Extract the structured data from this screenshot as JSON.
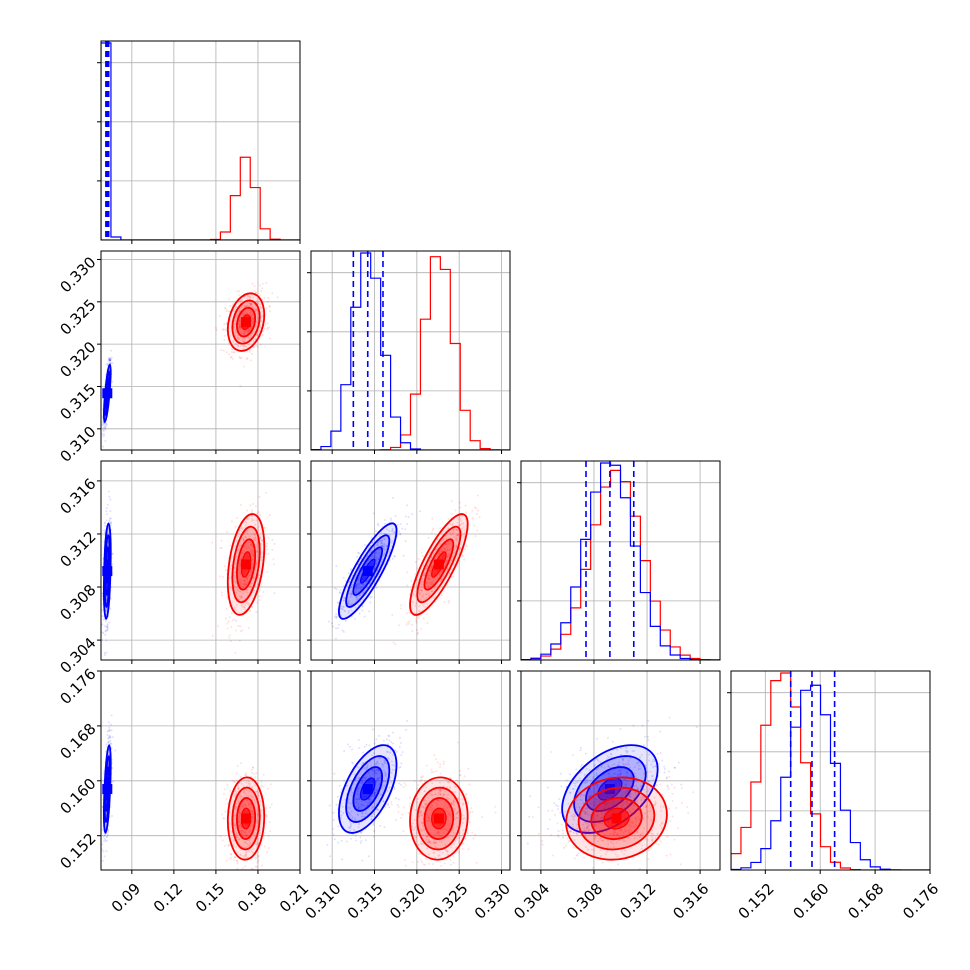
{
  "chart_data": {
    "type": "corner",
    "grid": true,
    "series_colors": [
      "#0000ff",
      "#ff0000"
    ],
    "parameters": [
      {
        "ticks": [
          0.09,
          0.12,
          0.15,
          0.18,
          0.21
        ],
        "tick_labels": [
          "0.09",
          "0.12",
          "0.15",
          "0.18",
          "0.21"
        ],
        "range": [
          0.068,
          0.21
        ],
        "blue_mean": 0.0725,
        "blue_std": 0.0012,
        "red_mean": 0.1715,
        "red_std": 0.0065,
        "blue_quantiles": [
          0.0715,
          0.0725,
          0.0735
        ]
      },
      {
        "ticks": [
          0.31,
          0.315,
          0.32,
          0.325,
          0.33
        ],
        "tick_labels": [
          "0.310",
          "0.315",
          "0.320",
          "0.325",
          "0.330"
        ],
        "range": [
          0.3075,
          0.331
        ],
        "blue_mean": 0.3142,
        "blue_std": 0.0017,
        "red_mean": 0.3226,
        "red_std": 0.0017,
        "blue_quantiles": [
          0.3125,
          0.3142,
          0.316
        ]
      },
      {
        "ticks": [
          0.304,
          0.308,
          0.312,
          0.316
        ],
        "tick_labels": [
          "0.304",
          "0.308",
          "0.312",
          "0.316"
        ],
        "range": [
          0.3025,
          0.3175
        ],
        "blue_mean": 0.3092,
        "blue_std": 0.0018,
        "red_mean": 0.3097,
        "red_std": 0.0019,
        "blue_quantiles": [
          0.3074,
          0.3092,
          0.311
        ]
      },
      {
        "ticks": [
          0.152,
          0.16,
          0.168,
          0.176
        ],
        "tick_labels": [
          "0.152",
          "0.160",
          "0.168",
          "0.176"
        ],
        "range": [
          0.147,
          0.176
        ],
        "blue_mean": 0.1588,
        "blue_std": 0.0032,
        "red_mean": 0.1545,
        "red_std": 0.003,
        "blue_quantiles": [
          0.1557,
          0.1588,
          0.1621
        ]
      }
    ],
    "correlations": {
      "blue": {
        "1-0": 0.75,
        "2-0": 0.35,
        "3-0": 0.55,
        "2-1": 0.85,
        "3-1": 0.55,
        "3-2": 0.45
      },
      "red": {
        "1-0": 0.25,
        "2-0": 0.35,
        "3-0": 0.05,
        "2-1": 0.8,
        "3-1": 0.05,
        "3-2": 0.1
      }
    }
  }
}
